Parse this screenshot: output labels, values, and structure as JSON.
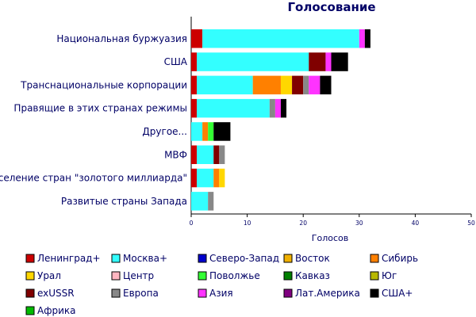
{
  "chart_data": {
    "type": "bar",
    "orientation": "horizontal",
    "stacked": true,
    "title": "Голосование",
    "xlabel": "Голосов",
    "ylabel": "",
    "xlim": [
      0,
      50
    ],
    "x_ticks": [
      0,
      10,
      20,
      30,
      40,
      50
    ],
    "grid": false,
    "legend_placement": "bottom",
    "categories": [
      "Национальная буржуазия",
      "США",
      "Транснациональные корпорации",
      "Правящие в этих странах режимы",
      "Другое...",
      "МВФ",
      "Население стран \"золотого миллиарда\"",
      "Развитые страны Запада"
    ],
    "series": [
      {
        "name": "Ленинград+",
        "color": "#cc0000",
        "values": [
          2,
          1,
          1,
          1,
          0,
          1,
          1,
          0
        ]
      },
      {
        "name": "Москва+",
        "color": "#33ffff",
        "values": [
          28,
          20,
          10,
          13,
          2,
          3,
          3,
          3
        ]
      },
      {
        "name": "Северо-Запад",
        "color": "#0000cc",
        "values": [
          0,
          0,
          0,
          0,
          0,
          0,
          0,
          0
        ]
      },
      {
        "name": "Восток",
        "color": "#f0b000",
        "values": [
          0,
          0,
          0,
          0,
          0,
          0,
          0,
          0
        ]
      },
      {
        "name": "Сибирь",
        "color": "#ff8000",
        "values": [
          0,
          0,
          5,
          0,
          1,
          0,
          1,
          0
        ]
      },
      {
        "name": "Урал",
        "color": "#ffd700",
        "values": [
          0,
          0,
          2,
          0,
          0,
          0,
          1,
          0
        ]
      },
      {
        "name": "Центр",
        "color": "#ffb6c1",
        "values": [
          0,
          0,
          0,
          0,
          0,
          0,
          0,
          0
        ]
      },
      {
        "name": "Поволжье",
        "color": "#33ff33",
        "values": [
          0,
          0,
          0,
          0,
          1,
          0,
          0,
          0
        ]
      },
      {
        "name": "Кавказ",
        "color": "#008000",
        "values": [
          0,
          0,
          0,
          0,
          0,
          0,
          0,
          0
        ]
      },
      {
        "name": "Юг",
        "color": "#b8b800",
        "values": [
          0,
          0,
          0,
          0,
          0,
          0,
          0,
          0
        ]
      },
      {
        "name": "exUSSR",
        "color": "#800000",
        "values": [
          0,
          3,
          2,
          0,
          0,
          1,
          0,
          0
        ]
      },
      {
        "name": "Европа",
        "color": "#888888",
        "values": [
          0,
          0,
          1,
          1,
          0,
          1,
          0,
          1
        ]
      },
      {
        "name": "Азия",
        "color": "#ff33ff",
        "values": [
          1,
          1,
          2,
          1,
          0,
          0,
          0,
          0
        ]
      },
      {
        "name": "Лат.Америка",
        "color": "#800080",
        "values": [
          0,
          0,
          0,
          0,
          0,
          0,
          0,
          0
        ]
      },
      {
        "name": "США+",
        "color": "#000000",
        "values": [
          1,
          3,
          2,
          1,
          3,
          0,
          0,
          0
        ]
      },
      {
        "name": "Африка",
        "color": "#00bb00",
        "values": [
          0,
          0,
          0,
          0,
          0,
          0,
          0,
          0
        ]
      }
    ]
  }
}
